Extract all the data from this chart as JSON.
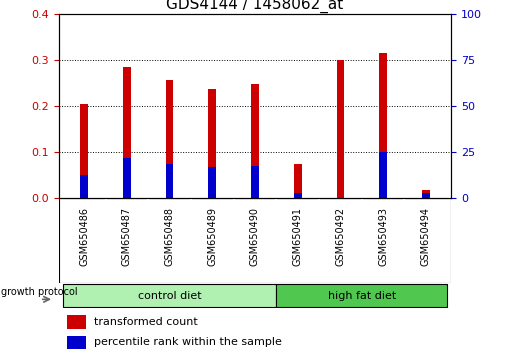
{
  "title": "GDS4144 / 1458062_at",
  "samples": [
    "GSM650486",
    "GSM650487",
    "GSM650488",
    "GSM650489",
    "GSM650490",
    "GSM650491",
    "GSM650492",
    "GSM650493",
    "GSM650494"
  ],
  "transformed_count": [
    0.205,
    0.285,
    0.258,
    0.238,
    0.248,
    0.075,
    0.3,
    0.315,
    0.018
  ],
  "percentile_rank": [
    0.05,
    0.088,
    0.075,
    0.068,
    0.07,
    0.012,
    0.0,
    0.1,
    0.012
  ],
  "groups": [
    {
      "label": "control diet",
      "start": 0,
      "end": 5,
      "color": "#b0f0b0"
    },
    {
      "label": "high fat diet",
      "start": 5,
      "end": 9,
      "color": "#50c850"
    }
  ],
  "group_label": "growth protocol",
  "ylim_left": [
    0,
    0.4
  ],
  "ylim_right": [
    0,
    100
  ],
  "yticks_left": [
    0,
    0.1,
    0.2,
    0.3,
    0.4
  ],
  "yticks_right": [
    0,
    25,
    50,
    75,
    100
  ],
  "ylabel_left_color": "#cc0000",
  "ylabel_right_color": "#0000cc",
  "bar_width": 0.18,
  "red_color": "#cc0000",
  "blue_color": "#0000cc",
  "bg_color": "#ffffff",
  "tick_bg_color": "#c8c8c8",
  "title_fontsize": 11,
  "legend_fontsize": 8,
  "tick_fontsize": 8
}
